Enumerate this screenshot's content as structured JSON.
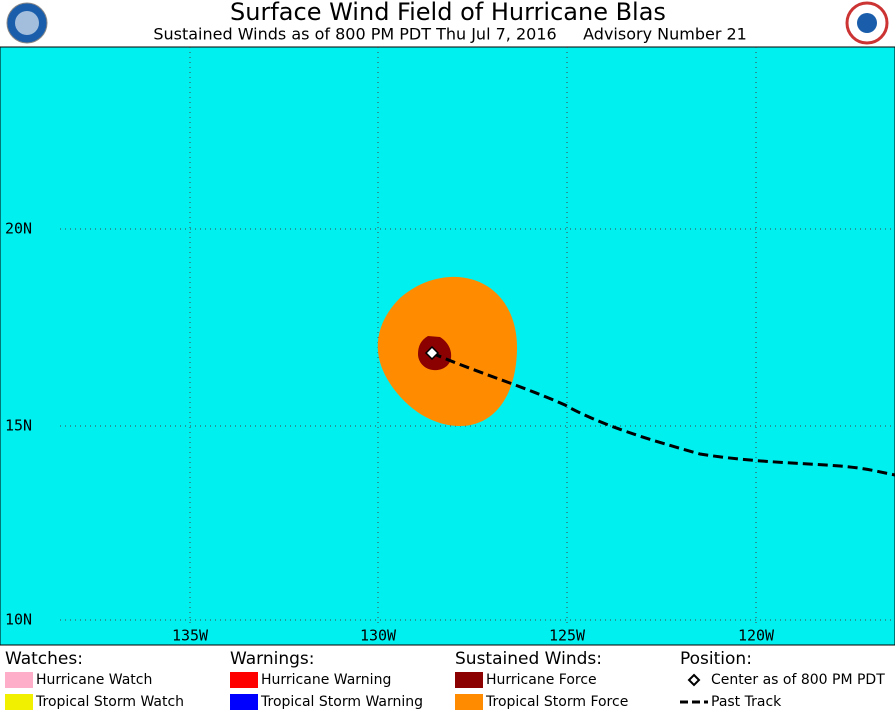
{
  "header": {
    "title": "Surface Wind Field of Hurricane Blas",
    "subtitle": "Sustained Winds as of 800 PM PDT Thu Jul 7, 2016",
    "advisory": "Advisory Number 21"
  },
  "map": {
    "lat_labels": [
      "20N",
      "15N",
      "10N"
    ],
    "lon_labels": [
      "135W",
      "130W",
      "125W",
      "120W"
    ]
  },
  "legend": {
    "groups": [
      {
        "title": "Watches:",
        "items": [
          {
            "label": "Hurricane Watch",
            "color": "#ffaec9"
          },
          {
            "label": "Tropical Storm Watch",
            "color": "#f0f000"
          }
        ]
      },
      {
        "title": "Warnings:",
        "items": [
          {
            "label": "Hurricane Warning",
            "color": "#ff0000"
          },
          {
            "label": "Tropical Storm Warning",
            "color": "#0000ff"
          }
        ]
      },
      {
        "title": "Sustained Winds:",
        "items": [
          {
            "label": "Hurricane Force",
            "color": "#8b0000"
          },
          {
            "label": "Tropical Storm Force",
            "color": "#ff8c00"
          }
        ]
      },
      {
        "title": "Position:",
        "items": [
          {
            "label": "Center as of 800 PM PDT",
            "symbol": "diamond"
          },
          {
            "label": "Past Track",
            "symbol": "dash"
          }
        ]
      }
    ]
  }
}
